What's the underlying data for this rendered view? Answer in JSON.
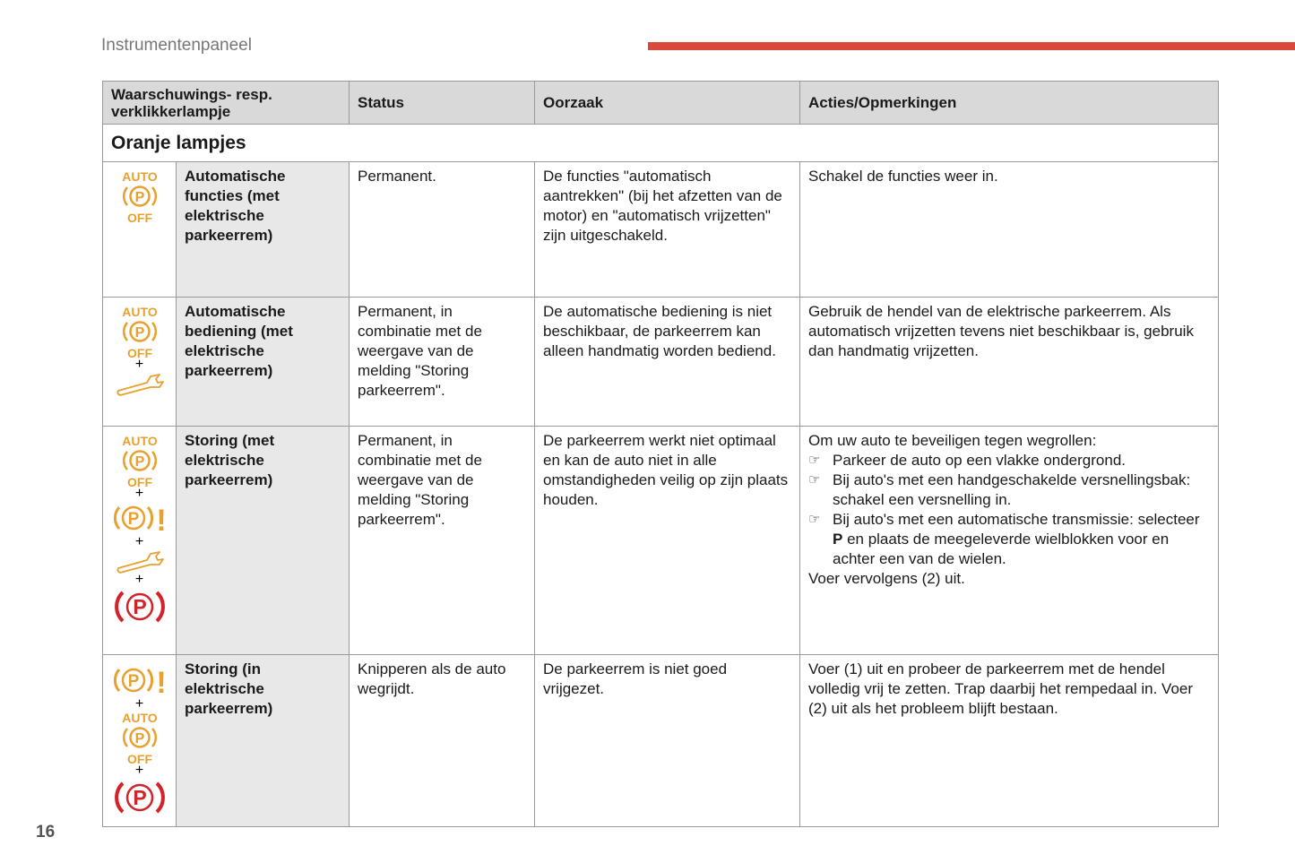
{
  "header": {
    "title": "Instrumentenpaneel",
    "page_number": "16"
  },
  "colors": {
    "orange": "#e8a02e",
    "red": "#d2232a",
    "accent_bar": "#d9483b"
  },
  "table": {
    "columns": [
      "Waarschuwings- resp. verklikkerlampje",
      "Status",
      "Oorzaak",
      "Acties/Opmerkingen"
    ],
    "section": "Oranje lampjes",
    "rows": [
      {
        "icons": [
          "auto-p-off-icon"
        ],
        "name": "Automatische functies (met elektrische parkeerrem)",
        "status": "Permanent.",
        "cause": "De functies \"automatisch aantrekken\" (bij het afzetten van de motor) en \"automatisch vrijzetten\" zijn uitgeschakeld.",
        "actions_intro": "Schakel de functies weer in.",
        "bullets": [],
        "actions_outro": ""
      },
      {
        "icons": [
          "auto-p-off-icon",
          "plus",
          "wrench-icon"
        ],
        "name": "Automatische bediening (met elektrische parkeerrem)",
        "status": "Permanent, in combinatie met de weergave van de melding \"Storing parkeerrem\".",
        "cause": "De automatische bediening is niet beschikbaar, de parkeerrem kan alleen handmatig worden bediend.",
        "actions_intro": "Gebruik de hendel van de elektrische parkeerrem. Als automatisch vrijzetten tevens niet beschikbaar is, gebruik dan handmatig vrijzetten.",
        "bullets": [],
        "actions_outro": ""
      },
      {
        "icons": [
          "auto-p-off-icon",
          "plus",
          "p-warning-icon",
          "plus",
          "wrench-icon",
          "plus",
          "red-p-icon"
        ],
        "name": "Storing (met elektrische parkeerrem)",
        "status": "Permanent, in combinatie met de weergave van de melding \"Storing parkeerrem\".",
        "cause": "De parkeerrem werkt niet optimaal en kan de auto niet in alle omstandigheden veilig op zijn plaats houden.",
        "actions_intro": "Om uw auto te beveiligen tegen wegrollen:",
        "bullets": [
          {
            "text": "Parkeer de auto op een vlakke ondergrond."
          },
          {
            "text": "Bij auto's met een handgeschakelde versnellingsbak: schakel een versnelling in."
          },
          {
            "pre": "Bij auto's met een automatische transmissie: selecteer ",
            "bold": "P",
            "post": " en plaats de meegeleverde wielblokken voor en achter een van de wielen."
          }
        ],
        "actions_outro": "Voer vervolgens (2) uit.",
        "bullet_icon": "pointing-hand-icon"
      },
      {
        "icons": [
          "p-warning-icon",
          "plus",
          "auto-p-off-icon",
          "plus",
          "red-p-icon"
        ],
        "name": "Storing (in elektrische parkeerrem)",
        "status": "Knipperen als de auto wegrijdt.",
        "cause": "De parkeerrem is niet goed vrijgezet.",
        "actions_intro": "Voer (1) uit en probeer de parkeerrem met de hendel volledig vrij te zetten. Trap daarbij het rempedaal in. Voer (2) uit als het probleem blijft bestaan.",
        "bullets": [],
        "actions_outro": ""
      }
    ]
  },
  "icon_text": {
    "auto": "AUTO",
    "off": "OFF",
    "p": "P",
    "excl": "!",
    "plus": "+"
  }
}
